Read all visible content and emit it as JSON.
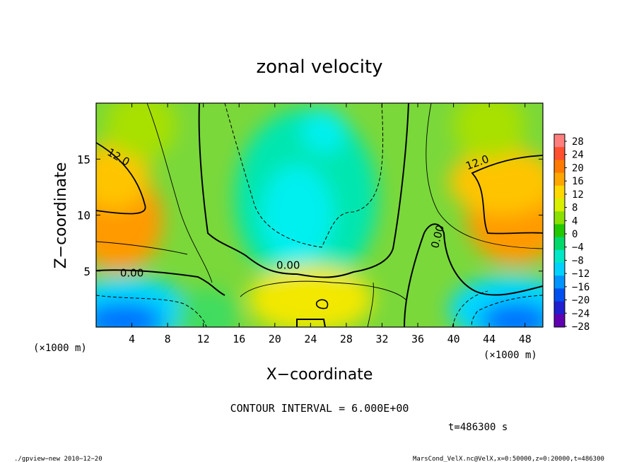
{
  "chart_data": {
    "type": "heatmap",
    "title": "zonal velocity",
    "xlabel": "X−coordinate",
    "ylabel": "Z−coordinate",
    "x_unit_left": "(×1000 m)",
    "x_unit_right": "(×1000 m)",
    "xlim": [
      0,
      50
    ],
    "ylim": [
      0,
      20
    ],
    "xticks": [
      4,
      8,
      12,
      16,
      20,
      24,
      28,
      32,
      36,
      40,
      44,
      48
    ],
    "yticks": [
      5,
      10,
      15
    ],
    "colorbar_levels": [
      28,
      24,
      20,
      16,
      12,
      8,
      4,
      0,
      -4,
      -8,
      -12,
      -16,
      -20,
      -24,
      -28
    ],
    "colorbar_labels": [
      "28",
      "24",
      "20",
      "16",
      "12",
      "8",
      "4",
      "0",
      "−4",
      "−8",
      "−12",
      "−16",
      "−20",
      "−24",
      "−28"
    ],
    "colorbar_colors": [
      "#ff7f7f",
      "#ff5030",
      "#ff7a00",
      "#ffa600",
      "#ffd800",
      "#d8ef00",
      "#8ae000",
      "#22c800",
      "#00d96a",
      "#00e8c8",
      "#00d2ff",
      "#0094ff",
      "#0050f0",
      "#2020d0",
      "#6000b0"
    ],
    "contour_labels": [
      {
        "text": "12.0",
        "x": 2.3,
        "z": 14.9,
        "rotate": 30
      },
      {
        "text": "12.0",
        "x": 42.8,
        "z": 14.4,
        "rotate": -20
      },
      {
        "text": "0.00",
        "x": 4.0,
        "z": 4.5,
        "rotate": 0
      },
      {
        "text": "0.00",
        "x": 21.5,
        "z": 5.2,
        "rotate": 0
      },
      {
        "text": "0.00",
        "x": 38.6,
        "z": 8.0,
        "rotate": -75
      }
    ],
    "blobs": [
      {
        "x": 2.5,
        "z": 9.5,
        "rx": 5.0,
        "rz": 4.5,
        "color": "#ff9a00"
      },
      {
        "x": 2.0,
        "z": 13.5,
        "rx": 4.0,
        "rz": 3.0,
        "color": "#ffc400"
      },
      {
        "x": 47.0,
        "z": 9.8,
        "rx": 5.5,
        "rz": 4.2,
        "color": "#ff9a00"
      },
      {
        "x": 45.5,
        "z": 13.0,
        "rx": 6.0,
        "rz": 3.0,
        "color": "#ffc400"
      },
      {
        "x": 23.5,
        "z": 11.5,
        "rx": 8.0,
        "rz": 8.0,
        "color": "#00e6b0"
      },
      {
        "x": 22.5,
        "z": 10.0,
        "rx": 4.0,
        "rz": 4.5,
        "color": "#00f0f0"
      },
      {
        "x": 25.5,
        "z": 17.5,
        "rx": 2.5,
        "rz": 2.0,
        "color": "#00f0f0"
      },
      {
        "x": 3.5,
        "z": 1.5,
        "rx": 7.0,
        "rz": 3.0,
        "color": "#00d8ff"
      },
      {
        "x": 3.0,
        "z": 0.6,
        "rx": 4.5,
        "rz": 1.6,
        "color": "#0070ff"
      },
      {
        "x": 46.5,
        "z": 1.6,
        "rx": 7.0,
        "rz": 3.0,
        "color": "#00d8ff"
      },
      {
        "x": 47.0,
        "z": 0.6,
        "rx": 4.0,
        "rz": 1.6,
        "color": "#0070ff"
      },
      {
        "x": 24.0,
        "z": 2.5,
        "rx": 7.0,
        "rz": 3.0,
        "color": "#f2e800"
      },
      {
        "x": 12.5,
        "z": 1.0,
        "rx": 3.5,
        "rz": 2.5,
        "color": "#40dc60"
      },
      {
        "x": 5.0,
        "z": 18.0,
        "rx": 4.0,
        "rz": 3.0,
        "color": "#a8e000"
      },
      {
        "x": 44.0,
        "z": 18.0,
        "rx": 4.0,
        "rz": 3.0,
        "color": "#a8e000"
      }
    ]
  },
  "footer": {
    "contour_interval": "CONTOUR INTERVAL = 6.000E+00",
    "time": "t=486300  s",
    "program": "./gpview−new   2010−12−20",
    "source": "MarsCond_VelX.nc@VelX,x=0:50000,z=0:20000,t=486300"
  }
}
